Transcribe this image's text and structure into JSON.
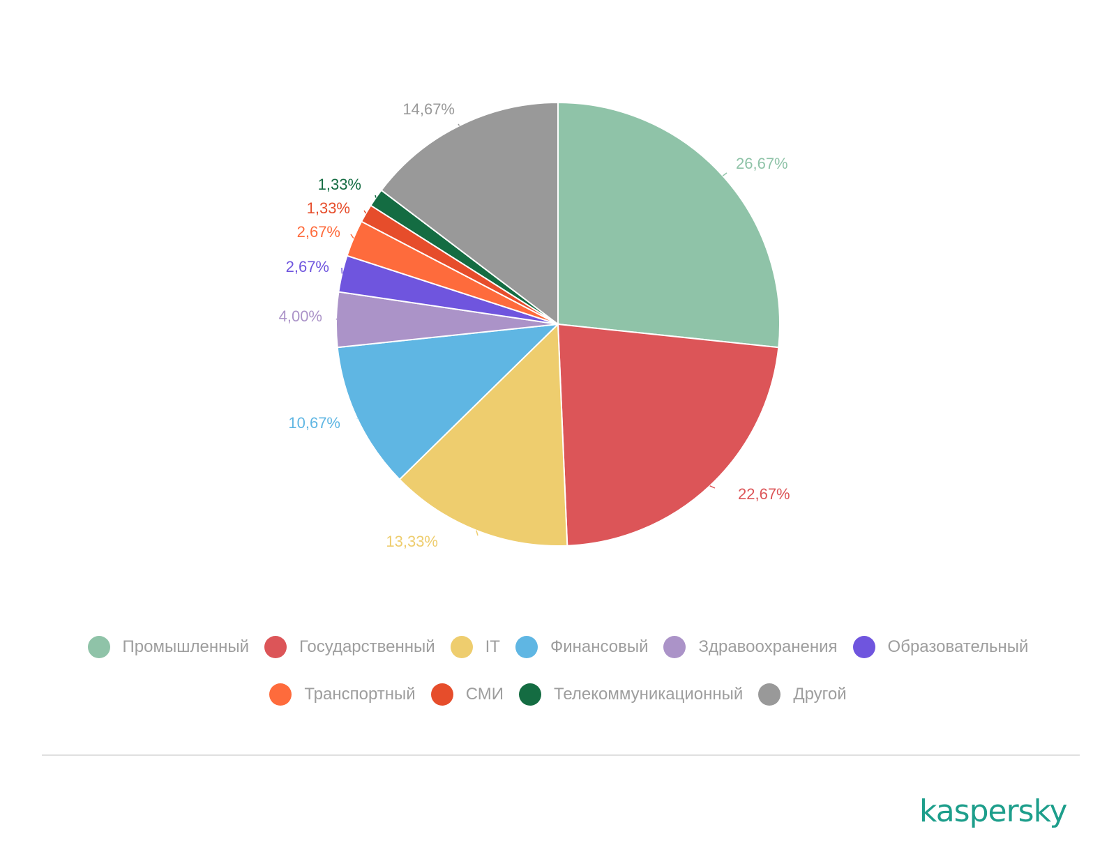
{
  "chart_data": {
    "type": "pie",
    "title": "",
    "legend_position": "bottom",
    "categories": [
      "Промышленный",
      "Государственный",
      "IT",
      "Финансовый",
      "Здравоохранения",
      "Образовательный",
      "Транспортный",
      "СМИ",
      "Телекоммуникационный",
      "Другой"
    ],
    "values": [
      26.67,
      22.67,
      13.33,
      10.67,
      4.0,
      2.67,
      2.67,
      1.33,
      1.33,
      14.67
    ],
    "value_labels": [
      "26,67%",
      "22,67%",
      "13,33%",
      "10,67%",
      "4,00%",
      "2,67%",
      "2,67%",
      "1,33%",
      "1,33%",
      "14,67%"
    ],
    "colors": [
      "#8fc3a8",
      "#dc5558",
      "#eecd6e",
      "#5fb6e3",
      "#ab93c8",
      "#6f55de",
      "#fe6b3c",
      "#e64d2b",
      "#146c42",
      "#999999"
    ]
  },
  "brand": "kaspersky"
}
